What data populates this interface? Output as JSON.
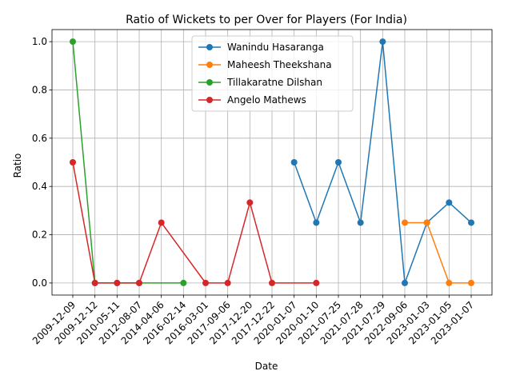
{
  "chart_data": {
    "type": "line",
    "title": "Ratio of Wickets to per Over for Players (For India)",
    "xlabel": "Date",
    "ylabel": "Ratio",
    "categories": [
      "2009-12-09",
      "2009-12-12",
      "2010-05-11",
      "2012-08-07",
      "2014-04-06",
      "2016-02-14",
      "2016-03-01",
      "2017-09-06",
      "2017-12-20",
      "2017-12-22",
      "2020-01-07",
      "2020-01-10",
      "2021-07-25",
      "2021-07-28",
      "2021-07-29",
      "2022-09-06",
      "2023-01-03",
      "2023-01-05",
      "2023-01-07"
    ],
    "ylim": [
      -0.05,
      1.05
    ],
    "yticks": [
      "0.0",
      "0.2",
      "0.4",
      "0.6",
      "0.8",
      "1.0"
    ],
    "grid": true,
    "legend_position": "upper center",
    "series": [
      {
        "name": "Wanindu Hasaranga",
        "color": "#1f77b4",
        "points": [
          [
            "2020-01-07",
            0.5
          ],
          [
            "2020-01-10",
            0.25
          ],
          [
            "2021-07-25",
            0.5
          ],
          [
            "2021-07-28",
            0.25
          ],
          [
            "2021-07-29",
            1.0
          ],
          [
            "2022-09-06",
            0.0
          ],
          [
            "2023-01-03",
            0.25
          ],
          [
            "2023-01-05",
            0.3333
          ],
          [
            "2023-01-07",
            0.25
          ]
        ]
      },
      {
        "name": "Maheesh Theekshana",
        "color": "#ff7f0e",
        "points": [
          [
            "2022-09-06",
            0.25
          ],
          [
            "2023-01-03",
            0.25
          ],
          [
            "2023-01-05",
            0.0
          ],
          [
            "2023-01-07",
            0.0
          ]
        ]
      },
      {
        "name": "Tillakaratne Dilshan",
        "color": "#2ca02c",
        "points": [
          [
            "2009-12-09",
            1.0
          ],
          [
            "2009-12-12",
            0.0
          ],
          [
            "2010-05-11",
            0.0
          ],
          [
            "2012-08-07",
            0.0
          ],
          [
            "2016-02-14",
            0.0
          ]
        ]
      },
      {
        "name": "Angelo Mathews",
        "color": "#d62728",
        "points": [
          [
            "2009-12-09",
            0.5
          ],
          [
            "2009-12-12",
            0.0
          ],
          [
            "2010-05-11",
            0.0
          ],
          [
            "2012-08-07",
            0.0
          ],
          [
            "2014-04-06",
            0.25
          ],
          [
            "2016-03-01",
            0.0
          ],
          [
            "2017-09-06",
            0.0
          ],
          [
            "2017-12-20",
            0.3333
          ],
          [
            "2017-12-22",
            0.0
          ],
          [
            "2020-01-10",
            0.0
          ]
        ]
      }
    ]
  }
}
